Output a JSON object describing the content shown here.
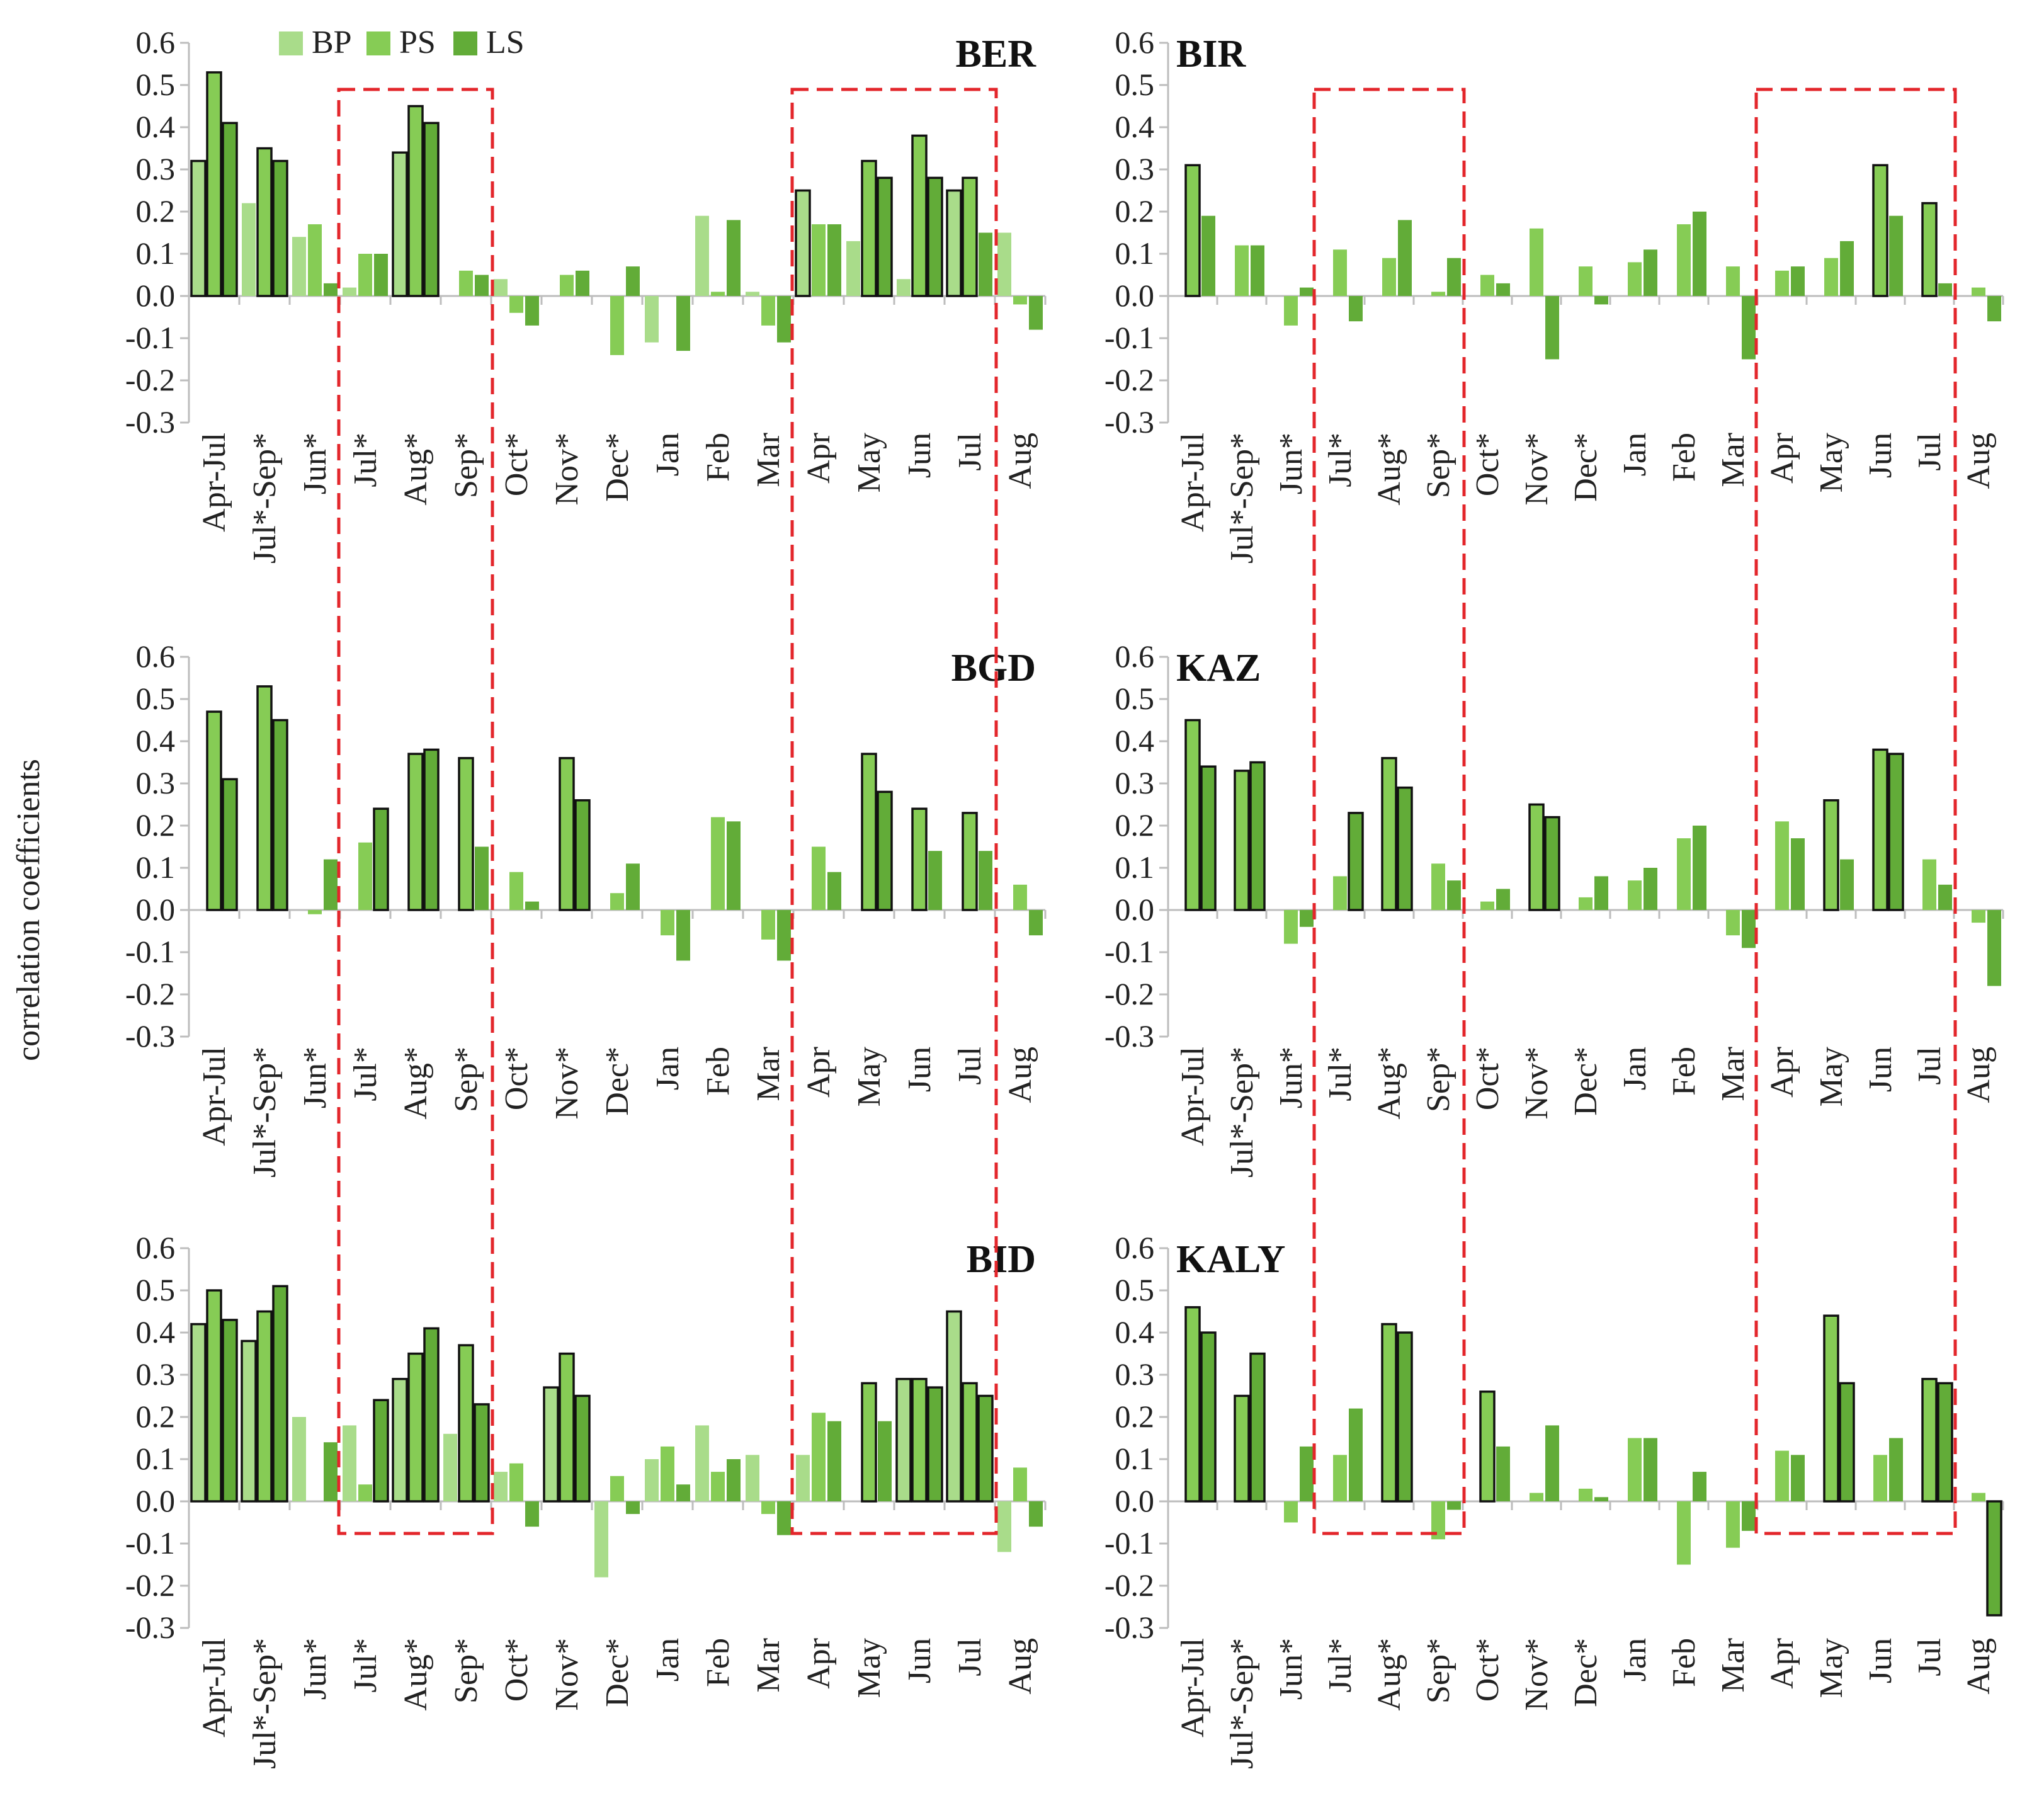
{
  "figure": {
    "ylabel": "correlation coefficients",
    "legend": [
      {
        "name": "BP",
        "color": "#a9dc8a"
      },
      {
        "name": "PS",
        "color": "#86cc55"
      },
      {
        "name": "LS",
        "color": "#62ac38"
      }
    ],
    "highlight_color": "#e3262b"
  },
  "chart_data": [
    {
      "type": "bar",
      "title": "BER",
      "ylim": [
        -0.3,
        0.6
      ],
      "yticks": [
        "0.6",
        "0.5",
        "0.4",
        "0.3",
        "0.2",
        "0.1",
        "0.0",
        "-0.1",
        "-0.2",
        "-0.3"
      ],
      "categories": [
        "Apr-Jul",
        "Jul*-Sep*",
        "Jun*",
        "Jul*",
        "Aug*",
        "Sep*",
        "Oct*",
        "Nov*",
        "Dec*",
        "Jan",
        "Feb",
        "Mar",
        "Apr",
        "May",
        "Jun",
        "Jul",
        "Aug"
      ],
      "series": [
        {
          "name": "BP",
          "values": [
            0.32,
            0.22,
            0.14,
            0.02,
            0.34,
            null,
            0.04,
            null,
            null,
            -0.11,
            0.19,
            0.01,
            0.25,
            0.13,
            0.04,
            0.25,
            0.15
          ]
        },
        {
          "name": "PS",
          "values": [
            0.53,
            0.35,
            0.17,
            0.1,
            0.45,
            0.06,
            -0.04,
            0.05,
            -0.14,
            null,
            0.01,
            -0.07,
            0.17,
            0.32,
            0.38,
            0.28,
            -0.02
          ]
        },
        {
          "name": "LS",
          "values": [
            0.41,
            0.32,
            0.03,
            0.1,
            0.41,
            0.05,
            -0.07,
            0.06,
            0.07,
            -0.13,
            0.18,
            -0.11,
            0.17,
            0.28,
            0.28,
            0.15,
            -0.08
          ]
        }
      ],
      "significant": [
        [
          true,
          false,
          false,
          false,
          true,
          false,
          false,
          false,
          false,
          false,
          false,
          false,
          true,
          false,
          false,
          true,
          false
        ],
        [
          true,
          true,
          false,
          false,
          true,
          false,
          false,
          false,
          false,
          false,
          false,
          false,
          false,
          true,
          true,
          true,
          false
        ],
        [
          true,
          true,
          false,
          false,
          true,
          false,
          false,
          false,
          false,
          false,
          false,
          false,
          false,
          true,
          true,
          false,
          false
        ]
      ]
    },
    {
      "type": "bar",
      "title": "BIR",
      "ylim": [
        -0.3,
        0.6
      ],
      "yticks": [
        "0.6",
        "0.5",
        "0.4",
        "0.3",
        "0.2",
        "0.1",
        "0.0",
        "-0.1",
        "-0.2",
        "-0.3"
      ],
      "categories": [
        "Apr-Jul",
        "Jul*-Sep*",
        "Jun*",
        "Jul*",
        "Aug*",
        "Sep*",
        "Oct*",
        "Nov*",
        "Dec*",
        "Jan",
        "Feb",
        "Mar",
        "Apr",
        "May",
        "Jun",
        "Jul",
        "Aug"
      ],
      "series": [
        {
          "name": "BP",
          "values": [
            null,
            null,
            null,
            null,
            null,
            null,
            null,
            null,
            null,
            null,
            null,
            null,
            null,
            null,
            null,
            null,
            null
          ]
        },
        {
          "name": "PS",
          "values": [
            0.31,
            0.12,
            -0.07,
            0.11,
            0.09,
            0.01,
            0.05,
            0.16,
            0.07,
            0.08,
            0.17,
            0.07,
            0.06,
            0.09,
            0.31,
            0.22,
            0.02
          ]
        },
        {
          "name": "LS",
          "values": [
            0.19,
            0.12,
            0.02,
            -0.06,
            0.18,
            0.09,
            0.03,
            -0.15,
            -0.02,
            0.11,
            0.2,
            -0.15,
            0.07,
            0.13,
            0.19,
            0.03,
            -0.06
          ]
        }
      ],
      "significant": [
        [
          false,
          false,
          false,
          false,
          false,
          false,
          false,
          false,
          false,
          false,
          false,
          false,
          false,
          false,
          false,
          false,
          false
        ],
        [
          true,
          false,
          false,
          false,
          false,
          false,
          false,
          false,
          false,
          false,
          false,
          false,
          false,
          false,
          true,
          true,
          false
        ],
        [
          false,
          false,
          false,
          false,
          false,
          false,
          false,
          false,
          false,
          false,
          false,
          false,
          false,
          false,
          false,
          false,
          false
        ]
      ]
    },
    {
      "type": "bar",
      "title": "BGD",
      "ylim": [
        -0.3,
        0.6
      ],
      "yticks": [
        "0.6",
        "0.5",
        "0.4",
        "0.3",
        "0.2",
        "0.1",
        "0.0",
        "-0.1",
        "-0.2",
        "-0.3"
      ],
      "categories": [
        "Apr-Jul",
        "Jul*-Sep*",
        "Jun*",
        "Jul*",
        "Aug*",
        "Sep*",
        "Oct*",
        "Nov*",
        "Dec*",
        "Jan",
        "Feb",
        "Mar",
        "Apr",
        "May",
        "Jun",
        "Jul",
        "Aug"
      ],
      "series": [
        {
          "name": "BP",
          "values": [
            null,
            null,
            null,
            null,
            null,
            null,
            null,
            null,
            null,
            null,
            null,
            null,
            null,
            null,
            null,
            null,
            null
          ]
        },
        {
          "name": "PS",
          "values": [
            0.47,
            0.53,
            -0.01,
            0.16,
            0.37,
            0.36,
            0.09,
            0.36,
            0.04,
            -0.06,
            0.22,
            -0.07,
            0.15,
            0.37,
            0.24,
            0.23,
            0.06
          ]
        },
        {
          "name": "LS",
          "values": [
            0.31,
            0.45,
            0.12,
            0.24,
            0.38,
            0.15,
            0.02,
            0.26,
            0.11,
            -0.12,
            0.21,
            -0.12,
            0.09,
            0.28,
            0.14,
            0.14,
            -0.06
          ]
        }
      ],
      "significant": [
        [
          false,
          false,
          false,
          false,
          false,
          false,
          false,
          false,
          false,
          false,
          false,
          false,
          false,
          false,
          false,
          false,
          false
        ],
        [
          true,
          true,
          false,
          false,
          true,
          true,
          false,
          true,
          false,
          false,
          false,
          false,
          false,
          true,
          true,
          true,
          false
        ],
        [
          true,
          true,
          false,
          true,
          true,
          false,
          false,
          true,
          false,
          false,
          false,
          false,
          false,
          true,
          false,
          false,
          false
        ]
      ]
    },
    {
      "type": "bar",
      "title": "KAZ",
      "ylim": [
        -0.3,
        0.6
      ],
      "yticks": [
        "0.6",
        "0.5",
        "0.4",
        "0.3",
        "0.2",
        "0.1",
        "0.0",
        "-0.1",
        "-0.2",
        "-0.3"
      ],
      "categories": [
        "Apr-Jul",
        "Jul*-Sep*",
        "Jun*",
        "Jul*",
        "Aug*",
        "Sep*",
        "Oct*",
        "Nov*",
        "Dec*",
        "Jan",
        "Feb",
        "Mar",
        "Apr",
        "May",
        "Jun",
        "Jul",
        "Aug"
      ],
      "series": [
        {
          "name": "BP",
          "values": [
            null,
            null,
            null,
            null,
            null,
            null,
            null,
            null,
            null,
            null,
            null,
            null,
            null,
            null,
            null,
            null,
            null
          ]
        },
        {
          "name": "PS",
          "values": [
            0.45,
            0.33,
            -0.08,
            0.08,
            0.36,
            0.11,
            0.02,
            0.25,
            0.03,
            0.07,
            0.17,
            -0.06,
            0.21,
            0.26,
            0.38,
            0.12,
            -0.03
          ]
        },
        {
          "name": "LS",
          "values": [
            0.34,
            0.35,
            -0.04,
            0.23,
            0.29,
            0.07,
            0.05,
            0.22,
            0.08,
            0.1,
            0.2,
            -0.09,
            0.17,
            0.12,
            0.37,
            0.06,
            -0.18
          ]
        }
      ],
      "significant": [
        [
          false,
          false,
          false,
          false,
          false,
          false,
          false,
          false,
          false,
          false,
          false,
          false,
          false,
          false,
          false,
          false,
          false
        ],
        [
          true,
          true,
          false,
          false,
          true,
          false,
          false,
          true,
          false,
          false,
          false,
          false,
          false,
          true,
          true,
          false,
          false
        ],
        [
          true,
          true,
          false,
          true,
          true,
          false,
          false,
          true,
          false,
          false,
          false,
          false,
          false,
          false,
          true,
          false,
          false
        ]
      ]
    },
    {
      "type": "bar",
      "title": "BID",
      "ylim": [
        -0.3,
        0.6
      ],
      "yticks": [
        "0.6",
        "0.5",
        "0.4",
        "0.3",
        "0.2",
        "0.1",
        "0.0",
        "-0.1",
        "-0.2",
        "-0.3"
      ],
      "categories": [
        "Apr-Jul",
        "Jul*-Sep*",
        "Jun*",
        "Jul*",
        "Aug*",
        "Sep*",
        "Oct*",
        "Nov*",
        "Dec*",
        "Jan",
        "Feb",
        "Mar",
        "Apr",
        "May",
        "Jun",
        "Jul",
        "Aug"
      ],
      "series": [
        {
          "name": "BP",
          "values": [
            0.42,
            0.38,
            0.2,
            0.18,
            0.29,
            0.16,
            0.07,
            0.27,
            -0.18,
            0.1,
            0.18,
            0.11,
            0.11,
            null,
            0.29,
            0.45,
            -0.12
          ]
        },
        {
          "name": "PS",
          "values": [
            0.5,
            0.45,
            null,
            0.04,
            0.35,
            0.37,
            0.09,
            0.35,
            0.06,
            0.13,
            0.07,
            -0.03,
            0.21,
            0.28,
            0.29,
            0.28,
            0.08
          ]
        },
        {
          "name": "LS",
          "values": [
            0.43,
            0.51,
            0.14,
            0.24,
            0.41,
            0.23,
            -0.06,
            0.25,
            -0.03,
            0.04,
            0.1,
            -0.08,
            0.19,
            0.19,
            0.27,
            0.25,
            -0.06
          ]
        }
      ],
      "significant": [
        [
          true,
          true,
          false,
          false,
          true,
          false,
          false,
          true,
          false,
          false,
          false,
          false,
          false,
          false,
          true,
          true,
          false
        ],
        [
          true,
          true,
          false,
          false,
          true,
          true,
          false,
          true,
          false,
          false,
          false,
          false,
          false,
          true,
          true,
          true,
          false
        ],
        [
          true,
          true,
          false,
          true,
          true,
          true,
          false,
          true,
          false,
          false,
          false,
          false,
          false,
          false,
          true,
          true,
          false
        ]
      ]
    },
    {
      "type": "bar",
      "title": "KALY",
      "ylim": [
        -0.3,
        0.6
      ],
      "yticks": [
        "0.6",
        "0.5",
        "0.4",
        "0.3",
        "0.2",
        "0.1",
        "0.0",
        "-0.1",
        "-0.2",
        "-0.3"
      ],
      "categories": [
        "Apr-Jul",
        "Jul*-Sep*",
        "Jun*",
        "Jul*",
        "Aug*",
        "Sep*",
        "Oct*",
        "Nov*",
        "Dec*",
        "Jan",
        "Feb",
        "Mar",
        "Apr",
        "May",
        "Jun",
        "Jul",
        "Aug"
      ],
      "series": [
        {
          "name": "BP",
          "values": [
            null,
            null,
            null,
            null,
            null,
            null,
            null,
            null,
            null,
            null,
            null,
            null,
            null,
            null,
            null,
            null,
            null
          ]
        },
        {
          "name": "PS",
          "values": [
            0.46,
            0.25,
            -0.05,
            0.11,
            0.42,
            -0.09,
            0.26,
            0.02,
            0.03,
            0.15,
            -0.15,
            -0.11,
            0.12,
            0.44,
            0.11,
            0.29,
            0.02
          ]
        },
        {
          "name": "LS",
          "values": [
            0.4,
            0.35,
            0.13,
            0.22,
            0.4,
            -0.02,
            0.13,
            0.18,
            0.01,
            0.15,
            0.07,
            -0.07,
            0.11,
            0.28,
            0.15,
            0.28,
            -0.27
          ]
        }
      ],
      "significant": [
        [
          false,
          false,
          false,
          false,
          false,
          false,
          false,
          false,
          false,
          false,
          false,
          false,
          false,
          false,
          false,
          false,
          false
        ],
        [
          true,
          true,
          false,
          false,
          true,
          false,
          true,
          false,
          false,
          false,
          false,
          false,
          false,
          true,
          false,
          true,
          false
        ],
        [
          true,
          true,
          false,
          false,
          true,
          false,
          false,
          false,
          false,
          false,
          false,
          false,
          false,
          true,
          false,
          true,
          true
        ]
      ]
    }
  ]
}
